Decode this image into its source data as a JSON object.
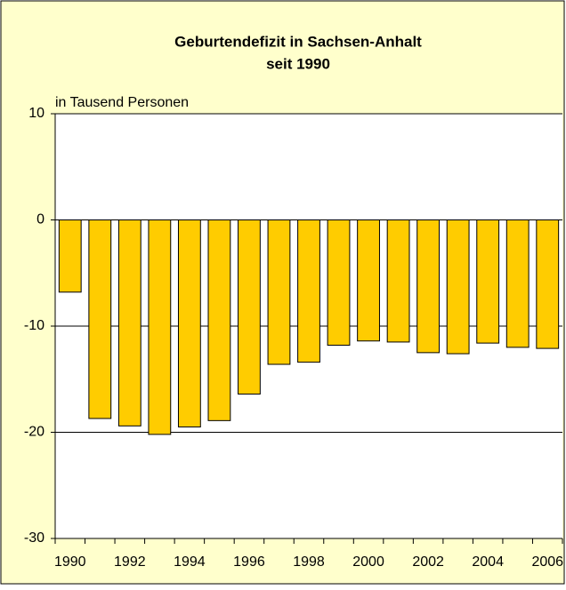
{
  "chart_data": {
    "type": "bar",
    "title": [
      "Geburtendefizit in Sachsen-Anhalt",
      "seit  1990"
    ],
    "y_label": "in Tausend Personen",
    "categories": [
      "1990",
      null,
      "1992",
      null,
      "1994",
      null,
      "1996",
      null,
      "1998",
      null,
      "2000",
      null,
      "2002",
      null,
      "2004",
      null,
      "2006"
    ],
    "values": [
      -6.8,
      -18.7,
      -19.4,
      -20.2,
      -19.5,
      -18.9,
      -16.4,
      -13.6,
      -13.4,
      -11.8,
      -11.4,
      -11.5,
      -12.5,
      -12.6,
      -11.6,
      -12.0,
      -12.1
    ],
    "color": "#FFCC00",
    "ylim": [
      -30,
      10
    ],
    "yticks": [
      -30,
      -20,
      -10,
      0,
      10
    ],
    "grid": true
  }
}
